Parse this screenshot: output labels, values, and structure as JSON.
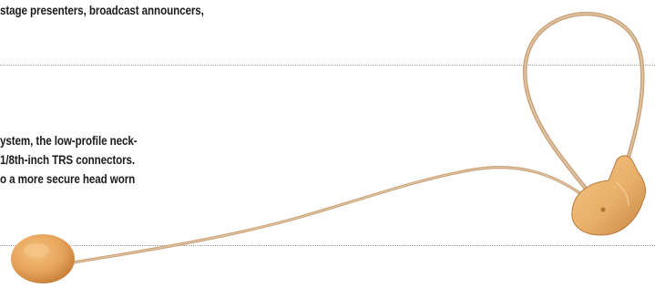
{
  "document": {
    "lines": {
      "top": "stage presenters, broadcast announcers,",
      "body_1": "ystem, the low-profile neck-",
      "body_2": "1/8th-inch TRS connectors.",
      "body_3": "o a more secure head worn"
    }
  },
  "figure": {
    "subject": "headset-microphone",
    "colors": {
      "boom": "#c9a37c",
      "boom_highlight": "#ecd2b0",
      "windscreen": "#e6a35a",
      "windscreen_shadow": "#c47c34",
      "connector": "#e8b06a",
      "connector_shadow": "#c68542"
    }
  }
}
